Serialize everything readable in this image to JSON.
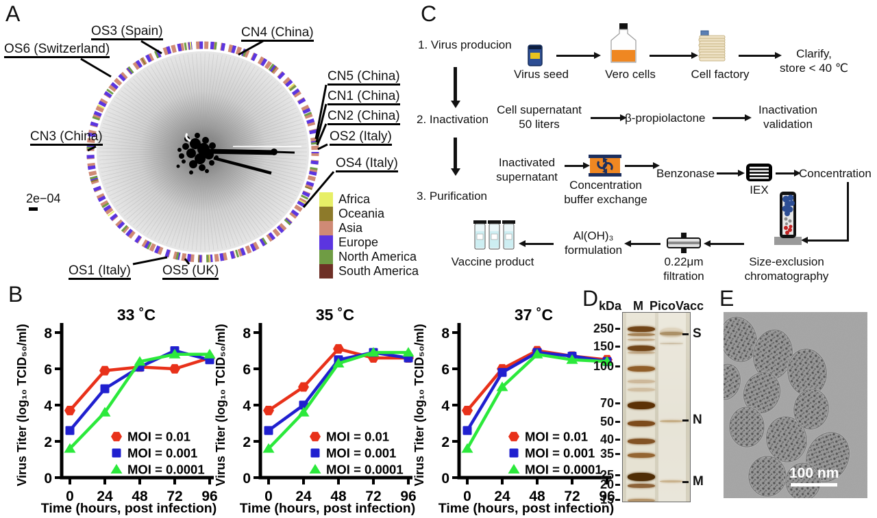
{
  "panel_labels": {
    "a": "A",
    "b": "B",
    "c": "C",
    "d": "D",
    "e": "E"
  },
  "panel_a": {
    "taxa": [
      "OS3 (Spain)",
      "CN4 (China)",
      "OS6 (Switzerland)",
      "CN5 (China)",
      "CN1 (China)",
      "CN2 (China)",
      "OS2 (Italy)",
      "CN3 (China)",
      "OS4 (Italy)",
      "OS1 (Italy)",
      "OS5 (UK)"
    ],
    "scale_bar_label": "2e−04",
    "legend": [
      {
        "label": "Africa",
        "color": "#e7ef67"
      },
      {
        "label": "Oceania",
        "color": "#8d7a2a"
      },
      {
        "label": "Asia",
        "color": "#cf8a75"
      },
      {
        "label": "Europe",
        "color": "#5b35e0"
      },
      {
        "label": "North America",
        "color": "#6f9c44"
      },
      {
        "label": "South America",
        "color": "#6e3026"
      }
    ]
  },
  "chart_data": [
    {
      "type": "line",
      "title": "33 ˚C",
      "x": [
        0,
        24,
        48,
        72,
        96
      ],
      "xlabel": "Time (hours, post infection)",
      "ylabel": "Virus Titer (log₁₀ TCID₅₀/ml)",
      "ylim": [
        0,
        8
      ],
      "yticks": [
        0,
        2,
        4,
        6,
        8
      ],
      "grid": false,
      "legend_position": "lower right",
      "series": [
        {
          "name": "MOI = 0.01",
          "color": "#e8311a",
          "marker": "hexagon",
          "values": [
            3.7,
            5.9,
            6.1,
            6.0,
            6.6
          ]
        },
        {
          "name": "MOI = 0.001",
          "color": "#2020cf",
          "marker": "square",
          "values": [
            2.6,
            4.9,
            6.1,
            7.0,
            6.5
          ]
        },
        {
          "name": "MOI = 0.0001",
          "color": "#2be93b",
          "marker": "triangle",
          "values": [
            1.6,
            3.6,
            6.4,
            6.8,
            6.8
          ]
        }
      ]
    },
    {
      "type": "line",
      "title": "35 ˚C",
      "x": [
        0,
        24,
        48,
        72,
        96
      ],
      "xlabel": "Time (hours, post infection)",
      "ylabel": "Virus Titer (log₁₀ TCID₅₀/ml)",
      "ylim": [
        0,
        8
      ],
      "yticks": [
        0,
        2,
        4,
        6,
        8
      ],
      "grid": false,
      "legend_position": "lower right",
      "series": [
        {
          "name": "MOI = 0.01",
          "color": "#e8311a",
          "marker": "hexagon",
          "values": [
            3.7,
            5.0,
            7.1,
            6.6,
            6.6
          ]
        },
        {
          "name": "MOI = 0.001",
          "color": "#2020cf",
          "marker": "square",
          "values": [
            2.6,
            4.0,
            6.5,
            6.9,
            6.6
          ]
        },
        {
          "name": "MOI = 0.0001",
          "color": "#2be93b",
          "marker": "triangle",
          "values": [
            1.6,
            3.6,
            6.3,
            6.9,
            6.9
          ]
        }
      ]
    },
    {
      "type": "line",
      "title": "37 ˚C",
      "x": [
        0,
        24,
        48,
        72,
        96
      ],
      "xlabel": "Time (hours, post infection)",
      "ylabel": "Virus Titer (log₁₀ TCID₅₀/ml)",
      "ylim": [
        0,
        8
      ],
      "yticks": [
        0,
        2,
        4,
        6,
        8
      ],
      "grid": false,
      "legend_position": "lower right",
      "series": [
        {
          "name": "MOI = 0.01",
          "color": "#e8311a",
          "marker": "hexagon",
          "values": [
            3.7,
            6.0,
            7.0,
            6.7,
            6.5
          ]
        },
        {
          "name": "MOI = 0.001",
          "color": "#2020cf",
          "marker": "square",
          "values": [
            2.6,
            5.8,
            6.9,
            6.7,
            6.4
          ]
        },
        {
          "name": "MOI = 0.0001",
          "color": "#2be93b",
          "marker": "triangle",
          "values": [
            1.6,
            5.0,
            6.8,
            6.5,
            6.4
          ]
        }
      ]
    }
  ],
  "panel_c": {
    "steps": [
      "1. Virus producion",
      "2. Inactivation",
      "3. Purification"
    ],
    "nodes": {
      "virus_seed": "Virus seed",
      "vero_cells": "Vero cells",
      "cell_factory": "Cell factory",
      "clarify": "Clarify,\nstore < 40 ℃",
      "cell_supernatant": "Cell supernatant\n50 liters",
      "bpl": "β-propiolactone",
      "inactivation_validation": "Inactivation\nvalidation",
      "inactivated_supernatant": "Inactivated\nsupernatant",
      "concentration_buffer_exchange": "Concentration\nbuffer exchange",
      "benzonase": "Benzonase",
      "iex": "IEX",
      "concentration": "Concentration",
      "size_exclusion": "Size-exclusion\nchromatography",
      "filtration": "0.22μm\nfiltration",
      "alum": "Al(OH)₃\nformulation",
      "vaccine_product": "Vaccine product"
    }
  },
  "panel_d": {
    "unit_header": "kDa",
    "lane_headers": [
      "M",
      "PicoVacc"
    ],
    "markers_kda": [
      "250",
      "150",
      "100",
      "70",
      "50",
      "40",
      "35",
      "25",
      "20",
      "15"
    ],
    "protein_bands": [
      "S",
      "N",
      "M"
    ]
  },
  "panel_e": {
    "scale_label": "100 nm"
  }
}
